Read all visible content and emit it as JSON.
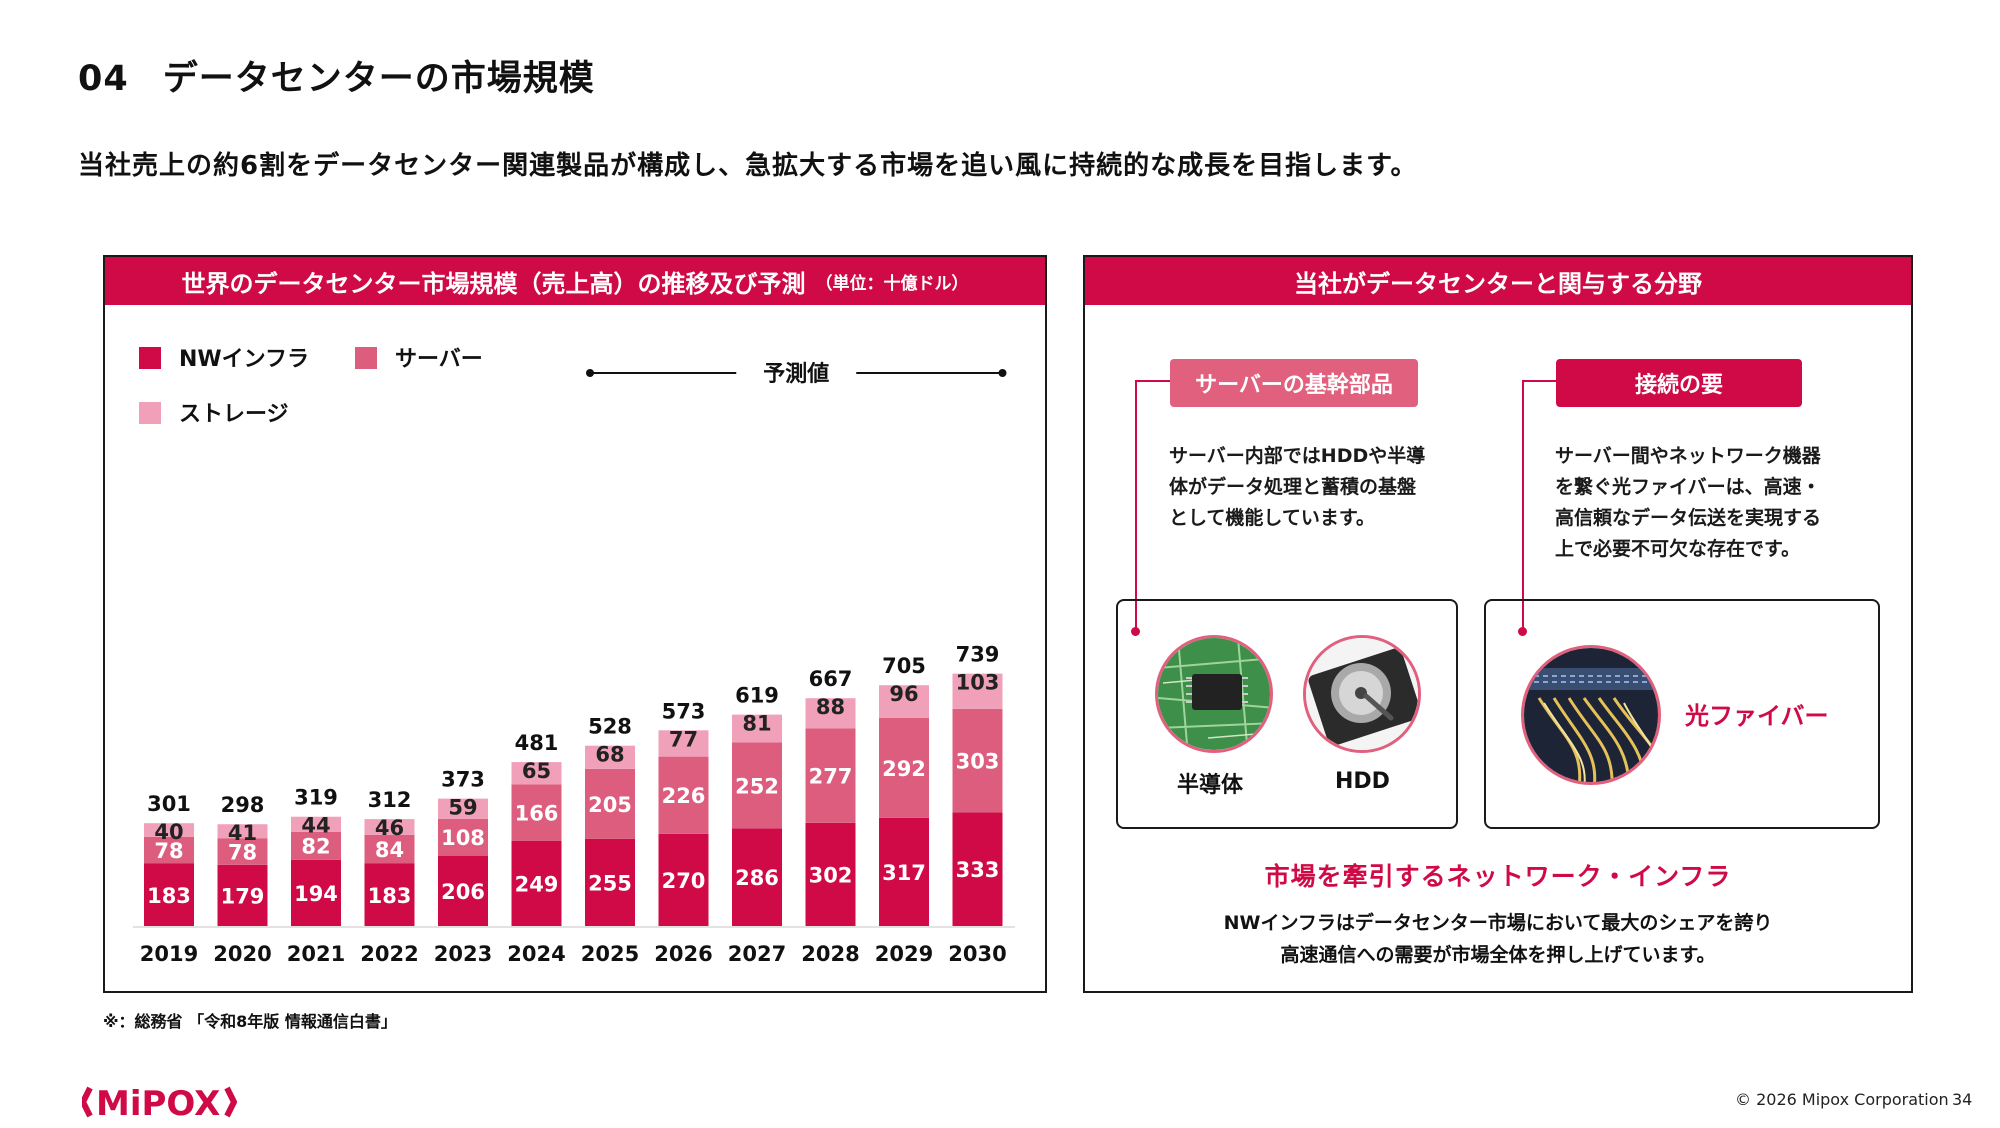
{
  "slide": {
    "number": "04",
    "title": "データセンターの市場規模",
    "lead": "当社売上の約6割をデータセンター関連製品が構成し、急拡大する市場を追い風に持続的な成長を目指します。",
    "footnote": "※：総務省 「令和8年版 情報通信白書」",
    "copyright": "© 2026 Mipox Corporation",
    "page": "34",
    "logo_text": "MiPOX",
    "brand_color": "#cf0a46"
  },
  "chart_panel": {
    "title": "世界のデータセンター市場規模（売上高）の推移及び予測",
    "unit": "（単位：十億ドル）",
    "forecast_label": "予測値"
  },
  "chart_data": {
    "type": "bar",
    "stacked": true,
    "categories": [
      "2019",
      "2020",
      "2021",
      "2022",
      "2023",
      "2024",
      "2025",
      "2026",
      "2027",
      "2028",
      "2029",
      "2030"
    ],
    "series": [
      {
        "name": "NWインフラ",
        "color": "#cf0a46",
        "values": [
          183,
          179,
          194,
          183,
          206,
          249,
          255,
          270,
          286,
          302,
          317,
          333
        ]
      },
      {
        "name": "サーバー",
        "color": "#dc5d7e",
        "values": [
          78,
          78,
          82,
          84,
          108,
          166,
          205,
          226,
          252,
          277,
          292,
          303
        ]
      },
      {
        "name": "ストレージ",
        "color": "#f0a0b8",
        "values": [
          40,
          41,
          44,
          46,
          59,
          65,
          68,
          77,
          81,
          88,
          96,
          103
        ]
      }
    ],
    "totals": [
      301,
      298,
      319,
      312,
      373,
      481,
      528,
      573,
      619,
      667,
      705,
      739
    ],
    "forecast_from": "2025",
    "legend_position": "top-left",
    "grid": false
  },
  "right_panel": {
    "title": "当社がデータセンターと関与する分野",
    "left_pill": "サーバーの基幹部品",
    "left_desc": "サーバー内部ではHDDや半導\n体がデータ処理と蓄積の基盤\nとして機能しています。",
    "right_pill": "接続の要",
    "right_desc": "サーバー間やネットワーク機器\nを繋ぐ光ファイバーは、高速・\n高信頼なデータ伝送を実現する\n上で必要不可欠な存在です。",
    "semiconductor_caption": "半導体",
    "hdd_caption": "HDD",
    "fiber_caption": "光ファイバー",
    "bottom_heading": "市場を牽引するネットワーク・インフラ",
    "bottom_text_1": "NWインフラはデータセンター市場において最大のシェアを誇り",
    "bottom_text_2": "高速通信への需要が市場全体を押し上げています。"
  }
}
